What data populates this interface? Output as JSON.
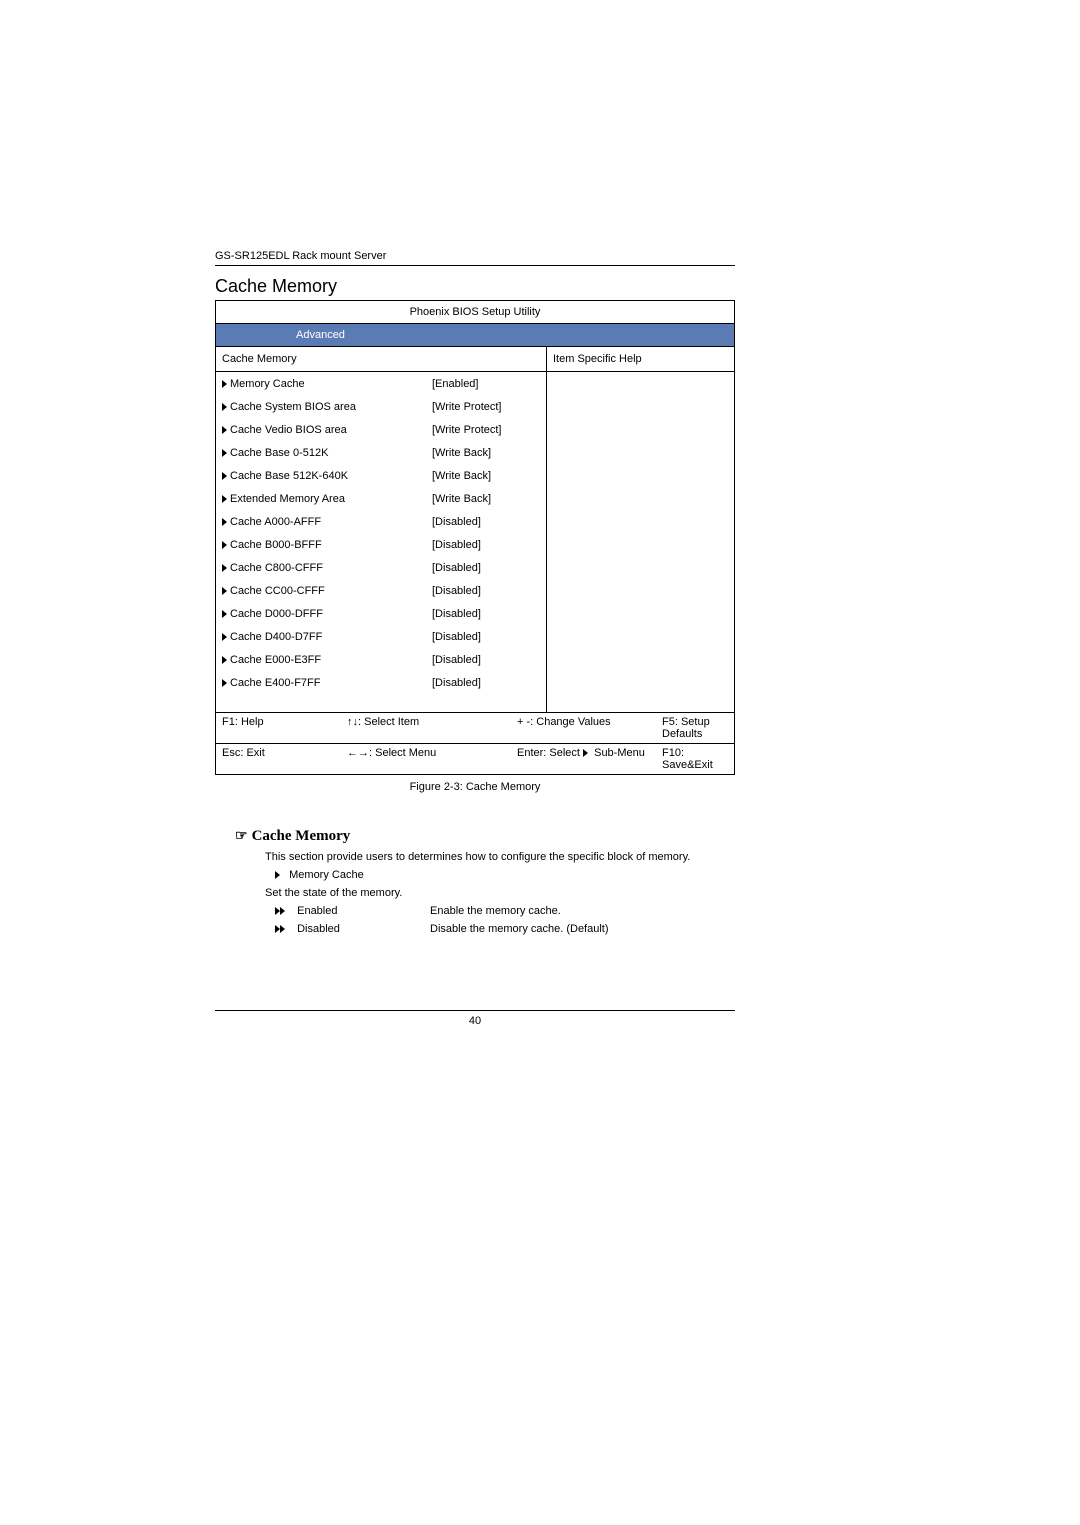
{
  "header": {
    "product": "GS-SR125EDL Rack mount Server"
  },
  "sectionTitle": "Cache Memory",
  "bios": {
    "utilityTitle": "Phoenix BIOS Setup Utility",
    "tab": "Advanced",
    "leftMenuTitle": "Cache Memory",
    "rightMenuTitle": "Item Specific Help",
    "items": [
      {
        "label": "Memory Cache",
        "value": "[Enabled]"
      },
      {
        "label": "Cache System BIOS area",
        "value": "[Write Protect]"
      },
      {
        "label": "Cache Vedio BIOS area",
        "value": "[Write Protect]"
      },
      {
        "label": "Cache Base 0-512K",
        "value": "[Write Back]"
      },
      {
        "label": "Cache Base 512K-640K",
        "value": "[Write Back]"
      },
      {
        "label": "Extended Memory Area",
        "value": "[Write Back]"
      },
      {
        "label": "Cache A000-AFFF",
        "value": "[Disabled]"
      },
      {
        "label": "Cache B000-BFFF",
        "value": "[Disabled]"
      },
      {
        "label": "Cache C800-CFFF",
        "value": "[Disabled]"
      },
      {
        "label": "Cache CC00-CFFF",
        "value": "[Disabled]"
      },
      {
        "label": "Cache D000-DFFF",
        "value": "[Disabled]"
      },
      {
        "label": "Cache D400-D7FF",
        "value": "[Disabled]"
      },
      {
        "label": "Cache E000-E3FF",
        "value": "[Disabled]"
      },
      {
        "label": "Cache E400-F7FF",
        "value": "[Disabled]"
      }
    ],
    "footer1": {
      "c1": "F1: Help",
      "c2": "↑↓: Select Item",
      "c3": "+ -: Change Values",
      "c4": "F5: Setup Defaults"
    },
    "footer2": {
      "c1": "Esc: Exit",
      "c2": "←→: Select Menu",
      "c3a": "Enter: Select ",
      "c3b": " Sub-Menu",
      "c4": "F10: Save&Exit"
    }
  },
  "figureCaption": "Figure 2-3: Cache Memory",
  "description": {
    "heading": "Cache Memory",
    "intro": "This section provide users to determines how to configure the specific block of memory.",
    "subItem": "Memory Cache",
    "stateLine": "Set the state of the memory.",
    "options": [
      {
        "name": "Enabled",
        "desc": "Enable the memory cache."
      },
      {
        "name": "Disabled",
        "desc": "Disable the memory cache. (Default)"
      }
    ]
  },
  "pageNumber": "40",
  "colors": {
    "tabBg": "#5b7bb5",
    "tabFg": "#ffffff"
  }
}
